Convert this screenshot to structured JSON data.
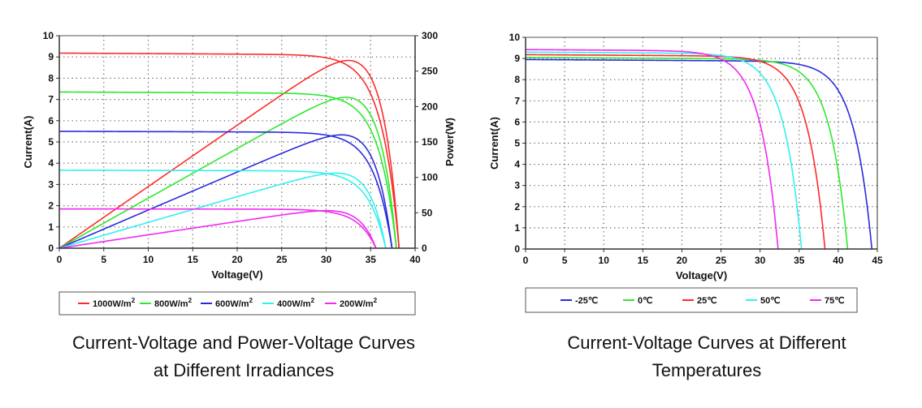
{
  "chart_data": [
    {
      "type": "line",
      "title": "Current-Voltage and Power-Voltage Curves at Different Irradiances",
      "caption_lines": [
        "Current-Voltage and Power-Voltage Curves",
        "at Different Irradiances"
      ],
      "xlabel": "Voltage(V)",
      "ylabel": "Current(A)",
      "y2label": "Power(W)",
      "xlim": [
        0,
        40
      ],
      "ylim": [
        0,
        10
      ],
      "y2lim": [
        0,
        300
      ],
      "xticks": [
        "0",
        "5",
        "10",
        "15",
        "20",
        "25",
        "30",
        "35",
        "40"
      ],
      "yticks": [
        "0",
        "1",
        "2",
        "3",
        "4",
        "5",
        "6",
        "7",
        "8",
        "9",
        "10"
      ],
      "y2ticks": [
        "0",
        "50",
        "100",
        "150",
        "200",
        "250",
        "300"
      ],
      "grid": true,
      "legend_position": "bottom",
      "series": [
        {
          "name": "1000W/m",
          "sup": "2",
          "color": "#ff2a2a",
          "isc": 9.18,
          "voc": 38.2,
          "vmp": 31.0,
          "pmax": 265
        },
        {
          "name": "800W/m",
          "sup": "2",
          "color": "#2ee82e",
          "isc": 7.35,
          "voc": 37.9,
          "vmp": 31.0,
          "pmax": 213
        },
        {
          "name": "600W/m",
          "sup": "2",
          "color": "#2a2ae0",
          "isc": 5.5,
          "voc": 37.4,
          "vmp": 30.8,
          "pmax": 160
        },
        {
          "name": "400W/m",
          "sup": "2",
          "color": "#33f0f0",
          "isc": 3.67,
          "voc": 36.7,
          "vmp": 30.5,
          "pmax": 106
        },
        {
          "name": "200W/m",
          "sup": "2",
          "color": "#f02af0",
          "isc": 1.85,
          "voc": 35.6,
          "vmp": 30.0,
          "pmax": 53
        }
      ]
    },
    {
      "type": "line",
      "title": "Current-Voltage Curves at Different Temperatures",
      "caption_lines": [
        "Current-Voltage Curves at Different",
        "Temperatures"
      ],
      "xlabel": "Voltage(V)",
      "ylabel": "Current(A)",
      "xlim": [
        0,
        45
      ],
      "ylim": [
        0,
        10
      ],
      "xticks": [
        "0",
        "5",
        "10",
        "15",
        "20",
        "25",
        "30",
        "35",
        "40",
        "45"
      ],
      "yticks": [
        "0",
        "1",
        "2",
        "3",
        "4",
        "5",
        "6",
        "7",
        "8",
        "9",
        "10"
      ],
      "grid": true,
      "legend_position": "bottom",
      "series": [
        {
          "name": "-25℃",
          "color": "#2a2ae0",
          "isc": 8.95,
          "voc": 44.3
        },
        {
          "name": "0℃",
          "color": "#2ee82e",
          "isc": 9.05,
          "voc": 41.2
        },
        {
          "name": "25℃",
          "color": "#ff2a2a",
          "isc": 9.18,
          "voc": 38.3
        },
        {
          "name": "50℃",
          "color": "#33f0f0",
          "isc": 9.3,
          "voc": 35.3
        },
        {
          "name": "75℃",
          "color": "#f02af0",
          "isc": 9.42,
          "voc": 32.3
        }
      ]
    }
  ]
}
